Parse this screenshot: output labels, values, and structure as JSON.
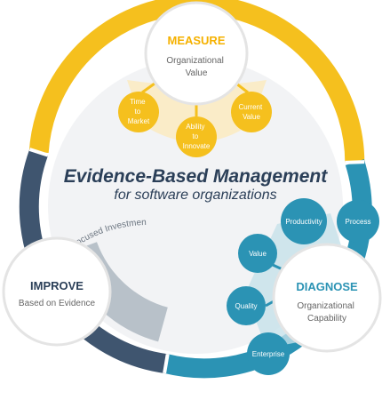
{
  "diagram": {
    "title": "Evidence-Based Management",
    "subtitle": "for software organizations",
    "colors": {
      "measure": "#f5c01e",
      "diagnose": "#2b93b4",
      "improve": "#3f556f",
      "inner_ring": "#b8c1c9",
      "center": "#f2f3f5"
    },
    "measure": {
      "title": "MEASURE",
      "subtitle_lines": [
        "Organizational",
        "Value"
      ],
      "bubbles": [
        {
          "lines": [
            "Time",
            "to",
            "Market"
          ]
        },
        {
          "lines": [
            "Ability",
            "to",
            "Innovate"
          ]
        },
        {
          "lines": [
            "Current",
            "Value"
          ]
        }
      ]
    },
    "diagnose": {
      "title": "DIAGNOSE",
      "subtitle_lines": [
        "Organizational",
        "Capability"
      ],
      "bubbles": [
        {
          "lines": [
            "Productivity"
          ]
        },
        {
          "lines": [
            "Process"
          ]
        },
        {
          "lines": [
            "Value"
          ]
        },
        {
          "lines": [
            "Quality"
          ]
        },
        {
          "lines": [
            "Enterprise"
          ]
        }
      ]
    },
    "improve": {
      "title": "IMPROVE",
      "subtitle_lines": [
        "Based on Evidence"
      ],
      "arc_label": "Focused Investment"
    }
  }
}
